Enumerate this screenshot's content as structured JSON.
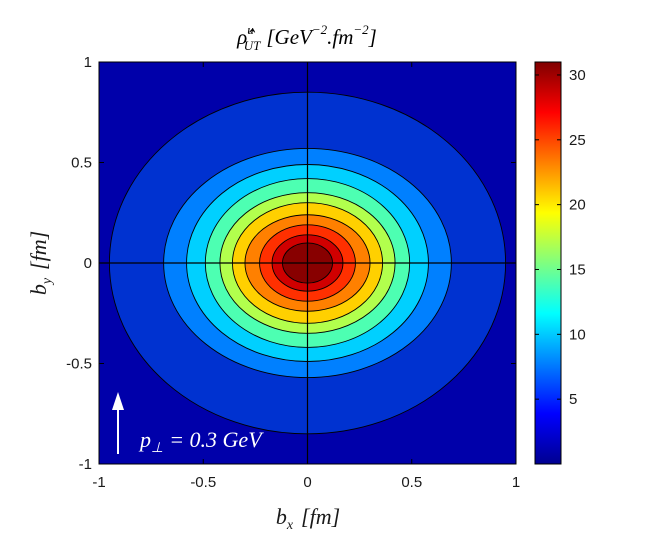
{
  "chart_data": {
    "type": "heatmap",
    "subtype": "filled-contour",
    "title": "ρ̂ᵘ_UT [GeV⁻².fm⁻²]",
    "title_parts": {
      "main": "ρ̂",
      "sup": "u",
      "sub": "UT",
      "units": "[GeV",
      "units_exp1": "−2",
      "units_mid": ".fm",
      "units_exp2": "−2",
      "units_close": "]"
    },
    "xlabel": "b_x [fm]",
    "xlabel_parts": {
      "var": "b",
      "sub": "x",
      "units": "[fm]"
    },
    "ylabel": "b_y [fm]",
    "ylabel_parts": {
      "var": "b",
      "sub": "y",
      "units": "[fm]"
    },
    "xlim": [
      -1,
      1
    ],
    "ylim": [
      -1,
      1
    ],
    "x_ticks": [
      "-1",
      "-0.5",
      "0",
      "0.5",
      "1"
    ],
    "y_ticks": [
      "1",
      "0.5",
      "0",
      "-0.5",
      "-1"
    ],
    "center": {
      "x": 0.0,
      "y": 0.0
    },
    "contour_levels": [
      0.5,
      3.5,
      6.5,
      9.5,
      12.5,
      15.5,
      18.5,
      21.5,
      24.5,
      27.5
    ],
    "contour_radii": [
      {
        "rx": 0.95,
        "ry": 0.85
      },
      {
        "rx": 0.69,
        "ry": 0.57
      },
      {
        "rx": 0.58,
        "ry": 0.49
      },
      {
        "rx": 0.49,
        "ry": 0.42
      },
      {
        "rx": 0.42,
        "ry": 0.35
      },
      {
        "rx": 0.36,
        "ry": 0.3
      },
      {
        "rx": 0.3,
        "ry": 0.24
      },
      {
        "rx": 0.23,
        "ry": 0.19
      },
      {
        "rx": 0.17,
        "ry": 0.14
      },
      {
        "rx": 0.12,
        "ry": 0.1
      }
    ],
    "fill_colors": [
      "#0000aa",
      "#0032d0",
      "#0080ff",
      "#00d0ff",
      "#4dffb2",
      "#b2ff4d",
      "#ffd000",
      "#ff8000",
      "#ff3000",
      "#d00000",
      "#880000"
    ],
    "colorbar": {
      "min": 0,
      "max": 31,
      "ticks": [
        5,
        10,
        15,
        20,
        25,
        30
      ],
      "tick_labels": [
        "5",
        "10",
        "15",
        "20",
        "25",
        "30"
      ],
      "colormap": "jet"
    },
    "crosshair": {
      "x": 0,
      "y": 0
    },
    "grid": false,
    "annotation": {
      "text": "p⊥ = 0.3 GeV",
      "parts": {
        "var": "p",
        "sub": "⊥",
        "rest": "= 0.3 GeV"
      },
      "arrow": "up"
    }
  }
}
